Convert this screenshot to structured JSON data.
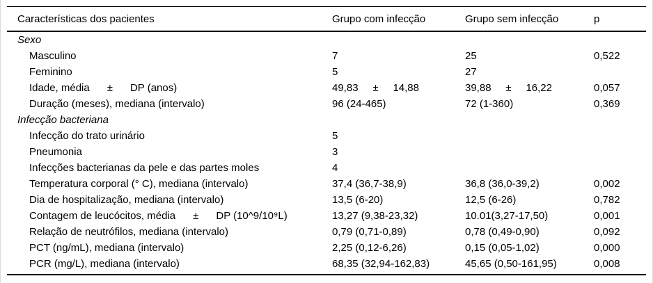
{
  "figure": {
    "colors": {
      "background": "#ffffff",
      "text": "#000000",
      "rule": "#000000",
      "edge_border": "#d9d9d9"
    },
    "columns": [
      {
        "label": "Características dos pacientes"
      },
      {
        "label": "Grupo com infecção"
      },
      {
        "label": "Grupo sem infecção"
      },
      {
        "label": "p"
      }
    ],
    "rows": [
      {
        "style": "section",
        "label": "Sexo",
        "group_infected": "",
        "group_uninfected": "",
        "p": ""
      },
      {
        "style": "item",
        "label": "Masculino",
        "group_infected": "7",
        "group_uninfected": "25",
        "p": "0,522"
      },
      {
        "style": "item",
        "label": "Feminino",
        "group_infected": "5",
        "group_uninfected": "27",
        "p": ""
      },
      {
        "style": "item",
        "label": "Idade, média      ±      DP (anos)",
        "group_infected": "49,83     ±     14,88",
        "group_uninfected": "39,88     ±     16,22",
        "p": "0,057"
      },
      {
        "style": "item",
        "label": "Duração (meses), mediana (intervalo)",
        "group_infected": "96 (24-465)",
        "group_uninfected": "72 (1-360)",
        "p": "0,369"
      },
      {
        "style": "section",
        "label": "Infecção bacteriana",
        "group_infected": "",
        "group_uninfected": "",
        "p": ""
      },
      {
        "style": "item",
        "label": "Infecção do trato urinário",
        "group_infected": "5",
        "group_uninfected": "",
        "p": ""
      },
      {
        "style": "item",
        "label": "Pneumonia",
        "group_infected": "3",
        "group_uninfected": "",
        "p": ""
      },
      {
        "style": "item",
        "label": "Infecções bacterianas da pele e das partes moles",
        "group_infected": "4",
        "group_uninfected": "",
        "p": ""
      },
      {
        "style": "item",
        "label": "Temperatura corporal (° C), mediana (intervalo)",
        "group_infected": "37,4 (36,7-38,9)",
        "group_uninfected": "36,8 (36,0-39,2)",
        "p": "0,002"
      },
      {
        "style": "item",
        "label": "Dia de hospitalização, mediana (intervalo)",
        "group_infected": "13,5 (6-20)",
        "group_uninfected": "12,5 (6-26)",
        "p": "0,782"
      },
      {
        "style": "item",
        "label": "Contagem de leucócitos, média      ±      DP (10^9/10⁹L)",
        "group_infected": "13,27 (9,38-23,32)",
        "group_uninfected": "10.01(3,27-17,50)",
        "p": "0,001"
      },
      {
        "style": "item",
        "label": "Relação de neutrófilos, mediana (intervalo)",
        "group_infected": "0,79 (0,71-0,89)",
        "group_uninfected": "0,78 (0,49-0,90)",
        "p": "0,092"
      },
      {
        "style": "item",
        "label": "PCT (ng/mL), mediana (intervalo)",
        "group_infected": "2,25 (0,12-6,26)",
        "group_uninfected": "0,15 (0,05-1,02)",
        "p": "0,000"
      },
      {
        "style": "item",
        "label": "PCR (mg/L), mediana (intervalo)",
        "group_infected": "68,35 (32,94-162,83)",
        "group_uninfected": "45,65 (0,50-161,95)",
        "p": "0,008"
      }
    ]
  }
}
